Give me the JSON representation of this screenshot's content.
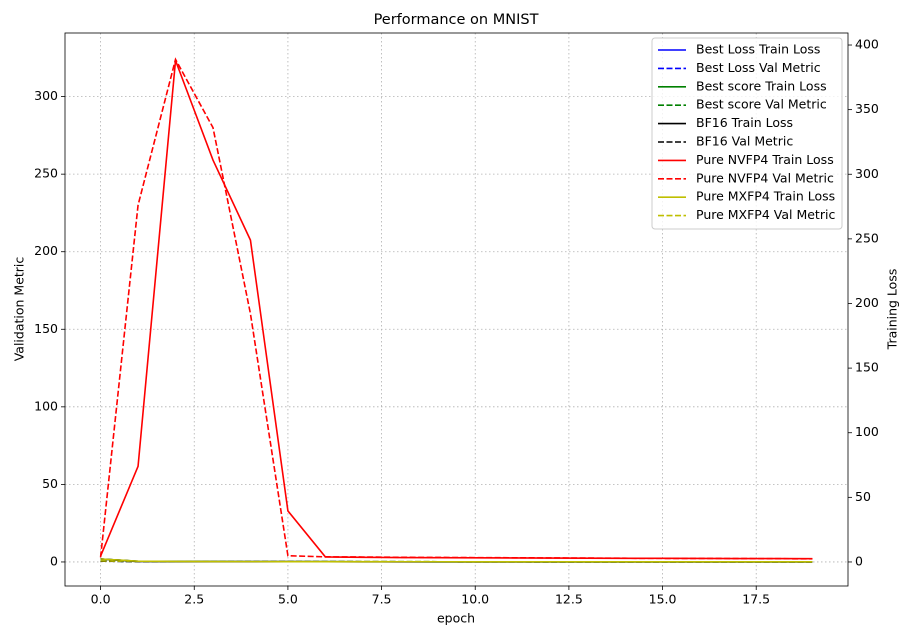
{
  "chart_data": {
    "type": "line",
    "title": "Performance on MNIST",
    "x_label": "epoch",
    "y_label": "Validation Metric",
    "y2_label": "Training Loss",
    "x": [
      0,
      1,
      2,
      3,
      4,
      5,
      6,
      7,
      8,
      9,
      10,
      11,
      12,
      13,
      14,
      15,
      16,
      17,
      18,
      19
    ],
    "xlim": [
      -0.95,
      19.95
    ],
    "xticks": [
      {
        "value": 0,
        "label": "0.0"
      },
      {
        "value": 2.5,
        "label": "2.5"
      },
      {
        "value": 5,
        "label": "5.0"
      },
      {
        "value": 7.5,
        "label": "7.5"
      },
      {
        "value": 10,
        "label": "10.0"
      },
      {
        "value": 12.5,
        "label": "12.5"
      },
      {
        "value": 15,
        "label": "15.0"
      },
      {
        "value": 17.5,
        "label": "17.5"
      }
    ],
    "ylim": [
      -15.5,
      341
    ],
    "yticks": [
      0,
      50,
      100,
      150,
      200,
      250,
      300
    ],
    "y2lim": [
      -18.6,
      409.3
    ],
    "y2ticks": [
      0,
      50,
      100,
      150,
      200,
      250,
      300,
      350,
      400
    ],
    "grid": true,
    "legend": "upper right",
    "series": [
      {
        "name": "Best Loss Train Loss",
        "color": "#0000ff",
        "linestyle": "solid",
        "axis": "y2",
        "values": [
          2.3,
          0.5,
          0.35,
          0.28,
          0.23,
          0.2,
          0.18,
          0.16,
          0.15,
          0.14,
          0.13,
          0.12,
          0.12,
          0.11,
          0.11,
          0.1,
          0.1,
          0.1,
          0.09,
          0.09
        ]
      },
      {
        "name": "Best Loss Val Metric",
        "color": "#0000ff",
        "linestyle": "dashed",
        "values": [
          0.6,
          0.3,
          0.25,
          0.2,
          0.18,
          0.17,
          0.16,
          0.15,
          0.14,
          0.14,
          0.13,
          0.13,
          0.12,
          0.12,
          0.12,
          0.11,
          0.11,
          0.11,
          0.1,
          0.1
        ]
      },
      {
        "name": "Best score Train Loss",
        "color": "#008000",
        "linestyle": "solid",
        "axis": "y2",
        "values": [
          2.3,
          0.55,
          0.38,
          0.3,
          0.25,
          0.22,
          0.19,
          0.17,
          0.16,
          0.15,
          0.14,
          0.13,
          0.12,
          0.12,
          0.11,
          0.11,
          0.1,
          0.1,
          0.1,
          0.09
        ]
      },
      {
        "name": "Best score Val Metric",
        "color": "#008000",
        "linestyle": "dashed",
        "values": [
          0.6,
          0.32,
          0.26,
          0.21,
          0.19,
          0.17,
          0.16,
          0.15,
          0.15,
          0.14,
          0.13,
          0.13,
          0.12,
          0.12,
          0.12,
          0.11,
          0.11,
          0.11,
          0.1,
          0.1
        ]
      },
      {
        "name": "BF16 Train Loss",
        "color": "#000000",
        "linestyle": "solid",
        "axis": "y2",
        "values": [
          2.3,
          0.45,
          0.3,
          0.25,
          0.21,
          0.18,
          0.16,
          0.15,
          0.14,
          0.13,
          0.12,
          0.11,
          0.11,
          0.1,
          0.1,
          0.09,
          0.09,
          0.09,
          0.08,
          0.08
        ]
      },
      {
        "name": "BF16 Val Metric",
        "color": "#000000",
        "linestyle": "dashed",
        "values": [
          0.5,
          0.28,
          0.22,
          0.19,
          0.17,
          0.16,
          0.15,
          0.14,
          0.13,
          0.13,
          0.12,
          0.12,
          0.11,
          0.11,
          0.11,
          0.1,
          0.1,
          0.1,
          0.1,
          0.09
        ]
      },
      {
        "name": "Pure NVFP4 Train Loss",
        "color": "#ff0000",
        "linestyle": "solid",
        "axis": "y2",
        "values": [
          4.6,
          74,
          388,
          311,
          249,
          39.5,
          3.9,
          3.6,
          3.4,
          3.3,
          3.2,
          3.1,
          3.0,
          2.9,
          2.8,
          2.8,
          2.7,
          2.6,
          2.6,
          2.5
        ]
      },
      {
        "name": "Pure NVFP4 Val Metric",
        "color": "#ff0000",
        "linestyle": "dashed",
        "values": [
          3,
          230,
          324,
          280,
          160,
          4,
          3.3,
          3.2,
          3.0,
          2.9,
          2.8,
          2.7,
          2.6,
          2.5,
          2.4,
          2.3,
          2.3,
          2.2,
          2.1,
          2.0
        ]
      },
      {
        "name": "Pure MXFP4 Train Loss",
        "color": "#bfbf00",
        "linestyle": "solid",
        "axis": "y2",
        "values": [
          2.3,
          0.6,
          0.4,
          0.32,
          0.27,
          0.23,
          0.2,
          0.18,
          0.17,
          0.16,
          0.15,
          0.14,
          0.13,
          0.12,
          0.12,
          0.11,
          0.11,
          0.1,
          0.1,
          0.1
        ]
      },
      {
        "name": "Pure MXFP4 Val Metric",
        "color": "#bfbf00",
        "linestyle": "dashed",
        "values": [
          0.7,
          0.35,
          0.28,
          0.23,
          0.2,
          0.18,
          0.17,
          0.16,
          0.15,
          0.14,
          0.14,
          0.13,
          0.13,
          0.12,
          0.12,
          0.12,
          0.11,
          0.11,
          0.11,
          0.1
        ]
      }
    ]
  }
}
